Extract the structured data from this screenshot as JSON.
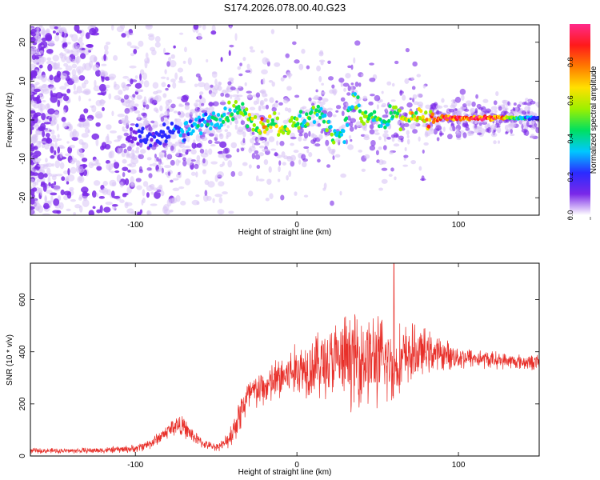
{
  "title": "S174.2026.078.00.40.G23",
  "colors": {
    "snr_line": "#e8302a",
    "spec_purple": "#7a28e8",
    "spec_light": "#d9c4f5",
    "frame": "#000000",
    "background": "#ffffff"
  },
  "chart_data": [
    {
      "type": "heatmap",
      "name": "spectrogram",
      "xlabel": "Height of straight line (km)",
      "ylabel": "Frequency (Hz)",
      "xlim": [
        -165,
        150
      ],
      "ylim": [
        -24.5,
        24.5
      ],
      "x_ticks": [
        -100,
        0,
        100
      ],
      "x_tick_labels": [
        "-100",
        "0",
        "100"
      ],
      "y_ticks": [
        -20,
        -10,
        0,
        10,
        20
      ],
      "y_tick_labels": [
        "-20",
        "-10",
        "0",
        "10",
        "20"
      ],
      "colorbar": {
        "label": "Normalized spectral amplitude",
        "range": [
          0,
          1
        ],
        "ticks": [
          0.0,
          0.2,
          0.4,
          0.6,
          0.8
        ],
        "tick_labels": [
          "0.0",
          "0.2",
          "0.4",
          "0.6",
          "0.8"
        ],
        "colormap": [
          "#ffffff",
          "#7a28e8",
          "#2b2bff",
          "#00c8ff",
          "#00e060",
          "#9cf000",
          "#ffe000",
          "#ff7a00",
          "#ff1a1a",
          "#ff2a8a"
        ]
      },
      "ridge": {
        "description": "dominant frequency near 0 Hz",
        "points": [
          {
            "x": -100,
            "f": -4.0,
            "a": 0.15
          },
          {
            "x": -90,
            "f": -5.5,
            "a": 0.2
          },
          {
            "x": -80,
            "f": -2.5,
            "a": 0.25
          },
          {
            "x": -70,
            "f": -3.5,
            "a": 0.3
          },
          {
            "x": -60,
            "f": -1.0,
            "a": 0.35
          },
          {
            "x": -50,
            "f": 0.5,
            "a": 0.4
          },
          {
            "x": -40,
            "f": 2.5,
            "a": 0.5
          },
          {
            "x": -35,
            "f": 3.5,
            "a": 0.5
          },
          {
            "x": -30,
            "f": 0.0,
            "a": 0.55
          },
          {
            "x": -25,
            "f": -1.5,
            "a": 0.55
          },
          {
            "x": -20,
            "f": -1.0,
            "a": 0.8
          },
          {
            "x": -15,
            "f": 0.0,
            "a": 0.55
          },
          {
            "x": -10,
            "f": -2.0,
            "a": 0.6
          },
          {
            "x": -5,
            "f": -1.5,
            "a": 0.55
          },
          {
            "x": 0,
            "f": -0.5,
            "a": 0.45
          },
          {
            "x": 5,
            "f": 0.0,
            "a": 0.45
          },
          {
            "x": 10,
            "f": 2.0,
            "a": 0.5
          },
          {
            "x": 15,
            "f": 1.0,
            "a": 0.45
          },
          {
            "x": 20,
            "f": -1.5,
            "a": 0.45
          },
          {
            "x": 25,
            "f": -4.0,
            "a": 0.4
          },
          {
            "x": 30,
            "f": -2.0,
            "a": 0.4
          },
          {
            "x": 35,
            "f": 6.0,
            "a": 0.45
          },
          {
            "x": 40,
            "f": 1.0,
            "a": 0.5
          },
          {
            "x": 45,
            "f": 0.5,
            "a": 0.55
          },
          {
            "x": 50,
            "f": 0.0,
            "a": 0.5
          },
          {
            "x": 55,
            "f": -1.5,
            "a": 0.4
          },
          {
            "x": 60,
            "f": 2.0,
            "a": 0.45
          },
          {
            "x": 65,
            "f": 0.5,
            "a": 0.55
          },
          {
            "x": 70,
            "f": 1.0,
            "a": 0.6
          },
          {
            "x": 75,
            "f": 0.5,
            "a": 0.65
          },
          {
            "x": 80,
            "f": 0.0,
            "a": 0.7
          },
          {
            "x": 85,
            "f": 0.0,
            "a": 0.75
          },
          {
            "x": 90,
            "f": 0.5,
            "a": 0.85
          },
          {
            "x": 95,
            "f": 0.5,
            "a": 0.9
          },
          {
            "x": 100,
            "f": 0.5,
            "a": 0.95
          },
          {
            "x": 105,
            "f": 0.5,
            "a": 0.97
          },
          {
            "x": 110,
            "f": 0.5,
            "a": 0.97
          },
          {
            "x": 115,
            "f": 0.5,
            "a": 0.95
          },
          {
            "x": 120,
            "f": 0.5,
            "a": 0.9
          },
          {
            "x": 125,
            "f": 0.5,
            "a": 0.8
          },
          {
            "x": 130,
            "f": 0.5,
            "a": 0.65
          },
          {
            "x": 135,
            "f": 0.5,
            "a": 0.5
          },
          {
            "x": 140,
            "f": 0.5,
            "a": 0.35
          },
          {
            "x": 145,
            "f": 0.5,
            "a": 0.25
          },
          {
            "x": 150,
            "f": 0.5,
            "a": 0.2
          }
        ]
      }
    },
    {
      "type": "line",
      "name": "snr",
      "xlabel": "Height of straight line (km)",
      "ylabel": "SNR (10 * v/v)",
      "xlim": [
        -165,
        150
      ],
      "ylim": [
        0,
        740
      ],
      "x_ticks": [
        -100,
        0,
        100
      ],
      "x_tick_labels": [
        "-100",
        "0",
        "100"
      ],
      "y_ticks": [
        0,
        200,
        400,
        600
      ],
      "y_tick_labels": [
        "0",
        "200",
        "400",
        "600"
      ],
      "envelope": {
        "x": [
          -165,
          -140,
          -120,
          -100,
          -90,
          -80,
          -75,
          -70,
          -65,
          -60,
          -55,
          -50,
          -45,
          -40,
          -35,
          -30,
          -25,
          -20,
          -10,
          0,
          10,
          20,
          30,
          40,
          50,
          60,
          70,
          80,
          90,
          100,
          110,
          120,
          130,
          140,
          150
        ],
        "mean": [
          20,
          20,
          22,
          28,
          50,
          95,
          120,
          110,
          80,
          55,
          40,
          35,
          45,
          90,
          170,
          230,
          250,
          260,
          300,
          330,
          350,
          360,
          370,
          380,
          370,
          350,
          390,
          400,
          390,
          380,
          375,
          370,
          365,
          360,
          360
        ],
        "spread": [
          12,
          12,
          14,
          18,
          25,
          35,
          50,
          45,
          35,
          25,
          18,
          18,
          25,
          60,
          90,
          90,
          85,
          85,
          110,
          120,
          150,
          170,
          200,
          220,
          210,
          180,
          140,
          100,
          70,
          55,
          45,
          40,
          35,
          35,
          35
        ]
      },
      "peak": {
        "x": 60,
        "y": 740
      }
    }
  ]
}
